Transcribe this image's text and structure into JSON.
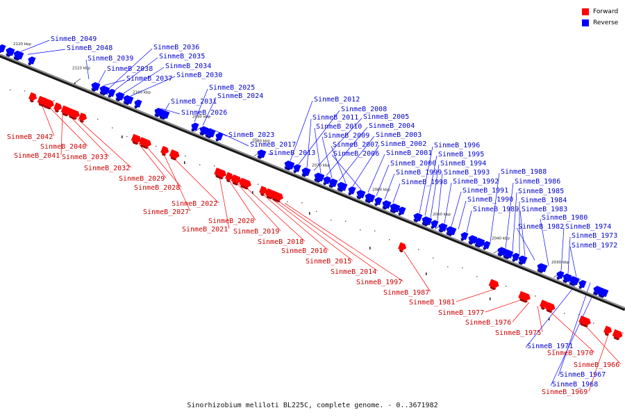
{
  "legend": {
    "forward_label": "Forward",
    "reverse_label": "Reverse",
    "forward_color": "#ff0000",
    "reverse_color": "#0000ff"
  },
  "caption": "Sinorhizobium meliloti BL225C, complete genome. - 0..3671982",
  "ticks": [
    "2120 kbp",
    "2110 kbp",
    "2100 kbp",
    "2090 kbp",
    "2080 kbp",
    "2070 kbp",
    "2060 kbp",
    "2050 kbp",
    "2040 kbp",
    "2030 kbp"
  ],
  "reverse_genes": [
    "SinmeB_2049",
    "SinmeB_2048",
    "SinmeB_2039",
    "SinmeB_2038",
    "SinmeB_2037",
    "SinmeB_2036",
    "SinmeB_2035",
    "SinmeB_2034",
    "SinmeB_2030",
    "SinmeB_2031",
    "SinmeB_2026",
    "SinmeB_2025",
    "SinmeB_2024",
    "SinmeB_2023",
    "SinmeB_2017",
    "SinmeB_2013",
    "SinmeB_2012",
    "SinmeB_2008",
    "SinmeB_2011",
    "SinmeB_2005",
    "SinmeB_2010",
    "SinmeB_2004",
    "SinmeB_2009",
    "SinmeB_2003",
    "SinmeB_2007",
    "SinmeB_2002",
    "SinmeB_2006",
    "SinmeB_2001",
    "SinmeB_2000",
    "SinmeB_1999",
    "SinmeB_1998",
    "SinmeB_1996",
    "SinmeB_1995",
    "SinmeB_1994",
    "SinmeB_1993",
    "SinmeB_1992",
    "SinmeB_1991",
    "SinmeB_1990",
    "SinmeB_1989",
    "SinmeB_1988",
    "SinmeB_1986",
    "SinmeB_1985",
    "SinmeB_1984",
    "SinmeB_1983",
    "SinmeB_1982",
    "SinmeB_1980",
    "SinmeB_1974",
    "SinmeB_1973",
    "SinmeB_1972",
    "SinmeB_1971",
    "SinmeB_1967",
    "SinmeB_1968"
  ],
  "forward_genes": [
    "SinmeB_2042",
    "SinmeB_2040",
    "SinmeB_2041",
    "SinmeB_2033",
    "SinmeB_2032",
    "SinmeB_2029",
    "SinmeB_2028",
    "SinmeB_2027",
    "SinmeB_2022",
    "SinmeB_2021",
    "SinmeB_2020",
    "SinmeB_2019",
    "SinmeB_2018",
    "SinmeB_2016",
    "SinmeB_2015",
    "SinmeB_2014",
    "SinmeB_1997",
    "SinmeB_1987",
    "SinmeB_1981",
    "SinmeB_1977",
    "SinmeB_1976",
    "SinmeB_1975",
    "SinmeB_1970",
    "SinmeB_1966",
    "SinmeB_1969"
  ]
}
